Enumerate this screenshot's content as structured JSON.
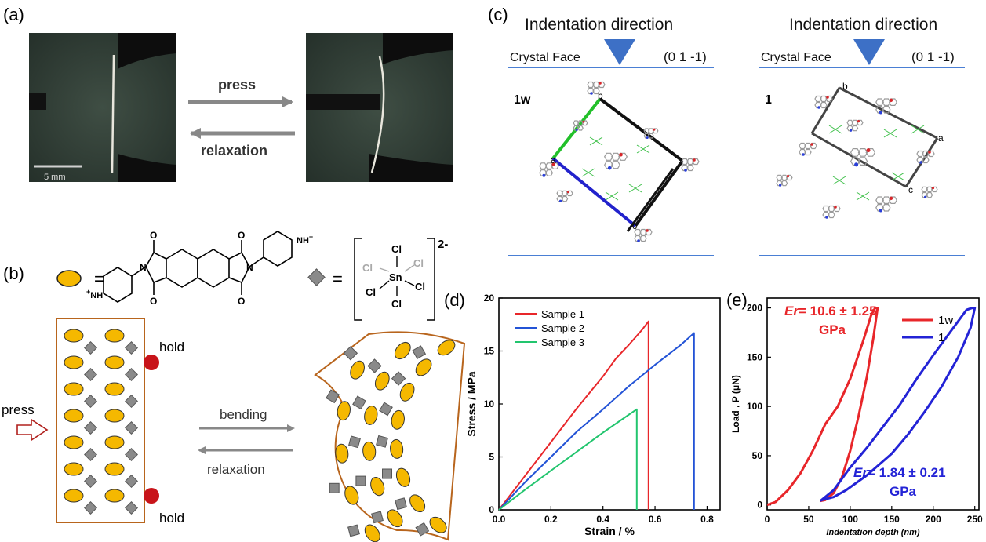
{
  "panels": {
    "a": {
      "label": "(a)",
      "press": "press",
      "relaxation": "relaxation",
      "scale_bar": "5 mm"
    },
    "b": {
      "label": "(b)",
      "equals": "=",
      "dianion_charge": "2-",
      "sn": "Sn",
      "cl": "Cl",
      "nh_plus": "NH",
      "plus": "+",
      "o": "O",
      "n": "N",
      "hold_top": "hold",
      "hold_bottom": "hold",
      "press": "press",
      "bending": "bending",
      "relaxation": "relaxation"
    },
    "c": {
      "label": "(c)",
      "left": {
        "title": "Indentation direction",
        "face": "Crystal Face",
        "miller": "(0 1 -1)",
        "name": "1w"
      },
      "right": {
        "title": "Indentation direction",
        "face": "Crystal Face",
        "miller": "(0 1 -1)",
        "name": "1"
      },
      "axes": {
        "a": "a",
        "b": "b",
        "c": "c"
      }
    },
    "d": {
      "label": "(d)"
    },
    "e": {
      "label": "(e)",
      "er_1w_value": "= 10.6 ± 1.25",
      "er_1w_unit": "GPa",
      "er_1_value": "= 1.84 ± 0.21",
      "er_1_unit": "GPa",
      "er_prefix": "Er"
    }
  },
  "chart_data": [
    {
      "type": "line",
      "panel": "d",
      "xlabel": "Strain / %",
      "ylabel": "Stress / MPa",
      "xlim": [
        0,
        0.85
      ],
      "ylim": [
        0,
        20
      ],
      "xticks": [
        "0.0",
        "0.2",
        "0.4",
        "0.6",
        "0.8"
      ],
      "yticks": [
        "0",
        "5",
        "10",
        "15",
        "20"
      ],
      "legend": "top-left",
      "series": [
        {
          "name": "Sample 1",
          "color": "#e8262a",
          "points": [
            [
              0,
              0
            ],
            [
              0.1,
              3.2
            ],
            [
              0.2,
              6.4
            ],
            [
              0.3,
              9.6
            ],
            [
              0.4,
              12.6
            ],
            [
              0.45,
              14.3
            ],
            [
              0.5,
              15.6
            ],
            [
              0.55,
              17.0
            ],
            [
              0.575,
              17.8
            ],
            [
              0.575,
              0
            ]
          ]
        },
        {
          "name": "Sample 2",
          "color": "#2353d6",
          "points": [
            [
              0,
              0
            ],
            [
              0.1,
              2.6
            ],
            [
              0.2,
              5.0
            ],
            [
              0.3,
              7.4
            ],
            [
              0.4,
              9.5
            ],
            [
              0.5,
              11.7
            ],
            [
              0.6,
              13.7
            ],
            [
              0.7,
              15.6
            ],
            [
              0.75,
              16.7
            ],
            [
              0.75,
              0
            ]
          ]
        },
        {
          "name": "Sample 3",
          "color": "#22c56e",
          "points": [
            [
              0,
              0
            ],
            [
              0.1,
              1.9
            ],
            [
              0.2,
              3.7
            ],
            [
              0.3,
              5.5
            ],
            [
              0.4,
              7.3
            ],
            [
              0.5,
              9.0
            ],
            [
              0.53,
              9.5
            ],
            [
              0.53,
              0
            ]
          ]
        }
      ]
    },
    {
      "type": "line",
      "panel": "e",
      "xlabel": "Indentation depth (nm)",
      "ylabel": "Load , P (μN)",
      "xlim": [
        0,
        255
      ],
      "ylim": [
        -5,
        210
      ],
      "xticks": [
        "0",
        "50",
        "100",
        "150",
        "200",
        "250"
      ],
      "yticks": [
        "0",
        "50",
        "100",
        "150",
        "200"
      ],
      "legend": "top-right",
      "series": [
        {
          "name": "1w",
          "color": "#e8262a",
          "points": [
            [
              0,
              0
            ],
            [
              10,
              3
            ],
            [
              25,
              15
            ],
            [
              40,
              32
            ],
            [
              55,
              55
            ],
            [
              70,
              82
            ],
            [
              85,
              100
            ],
            [
              100,
              128
            ],
            [
              115,
              165
            ],
            [
              125,
              192
            ],
            [
              130,
              200
            ],
            [
              133,
              200
            ],
            [
              128,
              170
            ],
            [
              120,
              130
            ],
            [
              110,
              90
            ],
            [
              100,
              55
            ],
            [
              90,
              28
            ],
            [
              80,
              12
            ],
            [
              70,
              5
            ],
            [
              64,
              4
            ]
          ]
        },
        {
          "name": "1",
          "color": "#2323d6",
          "points": [
            [
              64,
              4
            ],
            [
              80,
              15
            ],
            [
              100,
              38
            ],
            [
              120,
              58
            ],
            [
              140,
              80
            ],
            [
              160,
              102
            ],
            [
              180,
              128
            ],
            [
              200,
              152
            ],
            [
              220,
              175
            ],
            [
              240,
              198
            ],
            [
              247,
              200
            ],
            [
              250,
              200
            ],
            [
              245,
              180
            ],
            [
              230,
              150
            ],
            [
              210,
              120
            ],
            [
              190,
              95
            ],
            [
              170,
              72
            ],
            [
              150,
              52
            ],
            [
              120,
              30
            ],
            [
              95,
              15
            ],
            [
              80,
              8
            ],
            [
              66,
              5
            ]
          ]
        }
      ]
    }
  ]
}
